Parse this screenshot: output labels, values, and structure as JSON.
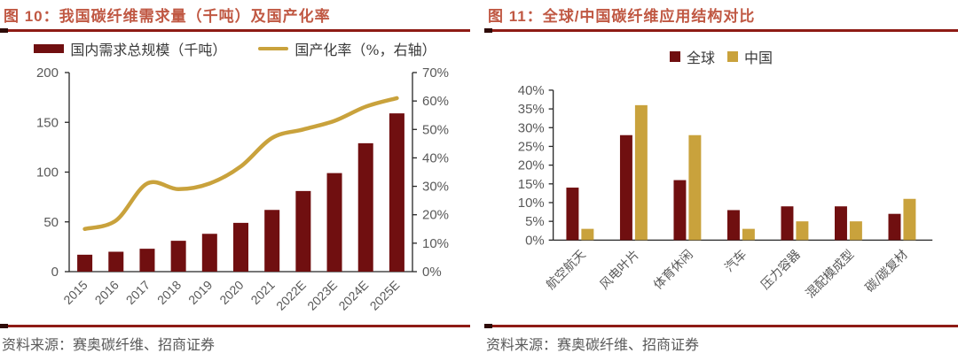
{
  "page": {
    "background": "#ffffff"
  },
  "colors": {
    "maroon": "#700F10",
    "gold": "#C9A23C",
    "title_red": "#C05843",
    "rule_red": "#8E1B15",
    "rule_tab": "#2E0B08",
    "axis_line": "#262626",
    "tick_label": "#595959"
  },
  "panels": [
    {
      "title": "图 10：我国碳纤维需求量（千吨）及国产化率",
      "source": "资料来源：赛奥碳纤维、招商证券"
    },
    {
      "title": "图 11：全球/中国碳纤维应用结构对比",
      "source": "资料来源：赛奥碳纤维、招商证券"
    }
  ],
  "chart_data": [
    {
      "type": "combo-bar-line",
      "title": "我国碳纤维需求量（千吨）及国产化率",
      "categories": [
        "2015",
        "2016",
        "2017",
        "2018",
        "2019",
        "2020",
        "2021",
        "2022E",
        "2023E",
        "2024E",
        "2025E"
      ],
      "series": [
        {
          "name": "国内需求总规模（千吨）",
          "type": "bar",
          "axis": "left",
          "color": "#700F10",
          "values": [
            17,
            20,
            23,
            31,
            38,
            49,
            62,
            81,
            99,
            129,
            159
          ]
        },
        {
          "name": "国产化率（%，右轴）",
          "type": "line",
          "axis": "right",
          "color": "#C9A23C",
          "values": [
            15,
            18,
            31,
            29,
            31,
            37,
            47,
            50,
            53,
            58,
            61
          ]
        }
      ],
      "left_axis": {
        "min": 0,
        "max": 200,
        "step": 50,
        "suffix": ""
      },
      "right_axis": {
        "min": 0,
        "max": 70,
        "step": 10,
        "suffix": "%"
      },
      "grid": false,
      "legend_position": "top"
    },
    {
      "type": "bar",
      "title": "全球/中国碳纤维应用结构对比",
      "categories": [
        "航空航天",
        "风电叶片",
        "体育休闲",
        "汽车",
        "压力容器",
        "混配模成型",
        "碳/碳复材"
      ],
      "series": [
        {
          "name": "全球",
          "color": "#700F10",
          "values": [
            14,
            28,
            16,
            8,
            9,
            9,
            7
          ]
        },
        {
          "name": "中国",
          "color": "#C9A23C",
          "values": [
            3,
            36,
            28,
            3,
            5,
            5,
            11
          ]
        }
      ],
      "y_axis": {
        "min": 0,
        "max": 40,
        "step": 5,
        "suffix": "%"
      },
      "grid": false,
      "legend_position": "top"
    }
  ]
}
